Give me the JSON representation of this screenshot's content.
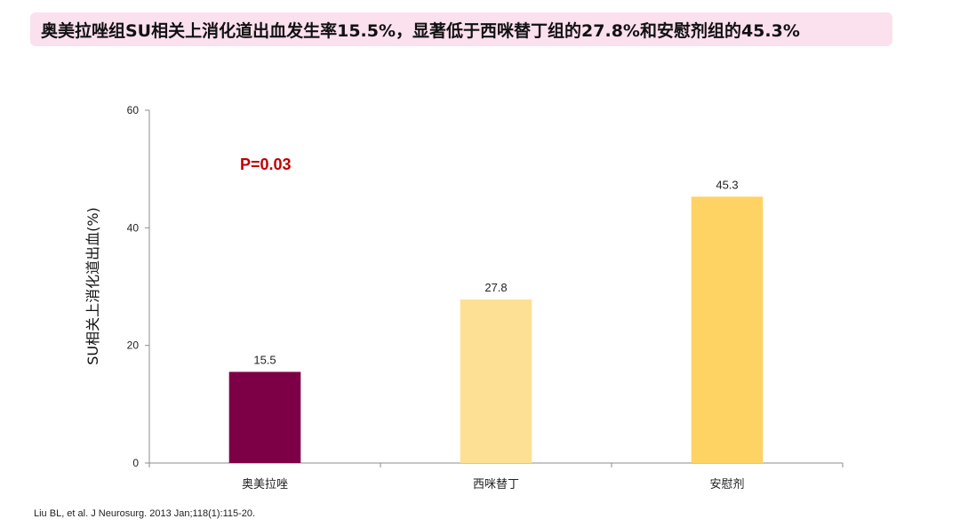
{
  "header": {
    "title": "奥美拉唑组SU相关上消化道出血发生率15.5%，显著低于西咪替丁组的27.8%和安慰剂组的45.3%"
  },
  "chart_data": {
    "type": "bar",
    "categories": [
      "奥美拉唑",
      "西咪替丁",
      "安慰剂"
    ],
    "values": [
      15.5,
      27.8,
      45.3
    ],
    "value_labels": [
      "15.5",
      "27.8",
      "45.3"
    ],
    "bar_colors": [
      "#7d0046",
      "#fde094",
      "#ffd363"
    ],
    "xlabel": "",
    "ylabel": "SU相关上消化道出血(%)",
    "ylim": [
      0,
      60
    ],
    "yticks": [
      0,
      20,
      40,
      60
    ],
    "ytick_labels": [
      "0",
      "20",
      "40",
      "60"
    ],
    "grid": false,
    "annotation": {
      "text": "P=0.03",
      "color": "#c00000"
    }
  },
  "footer": {
    "citation": "Liu BL, et al. J Neurosurg. 2013 Jan;118(1):115-20."
  }
}
